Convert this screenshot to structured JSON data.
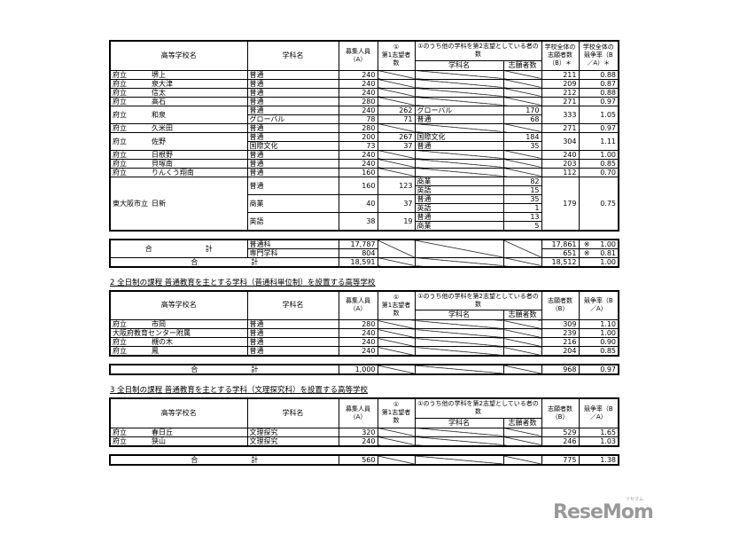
{
  "headers_full": {
    "school": "高等学校名",
    "dept": "学科名",
    "A": "募集人員（A）",
    "first_mark": "①",
    "first": "第1志望者数",
    "second": "①のうち他の学科を第2志望としている者の数",
    "sub_dept": "学科名",
    "sub_count": "志願者数",
    "B": "学校全体の志願者数（B）＊",
    "rate": "学校全体の競争率（B／A）＊"
  },
  "headers_short": {
    "school": "高等学校名",
    "dept": "学科名",
    "A": "募集人員（A）",
    "first_mark": "①",
    "first": "第1志望者数",
    "second": "①のうち他の学科を第2志望としている者の数",
    "sub_dept": "学科名",
    "sub_count": "志願者数",
    "B": "志願者数（B）",
    "rate": "競争率（B／A）"
  },
  "sections": [
    {
      "title": "",
      "rows": [
        {
          "prefix": "府立",
          "name": "堺上",
          "depts": [
            {
              "name": "普通",
              "A": "240",
              "first": null,
              "subs": []
            }
          ],
          "B": "211",
          "rate": "0.88"
        },
        {
          "prefix": "府立",
          "name": "泉大津",
          "depts": [
            {
              "name": "普通",
              "A": "240",
              "first": null,
              "subs": []
            }
          ],
          "B": "209",
          "rate": "0.87"
        },
        {
          "prefix": "府立",
          "name": "信太",
          "depts": [
            {
              "name": "普通",
              "A": "240",
              "first": null,
              "subs": []
            }
          ],
          "B": "212",
          "rate": "0.88"
        },
        {
          "prefix": "府立",
          "name": "高石",
          "depts": [
            {
              "name": "普通",
              "A": "280",
              "first": null,
              "subs": []
            }
          ],
          "B": "271",
          "rate": "0.97"
        },
        {
          "prefix": "府立",
          "name": "和泉",
          "depts": [
            {
              "name": "普通",
              "A": "240",
              "first": "262",
              "subs": [
                {
                  "name": "グローバル",
                  "count": "170"
                }
              ]
            },
            {
              "name": "グローバル",
              "A": "78",
              "first": "71",
              "subs": [
                {
                  "name": "普通",
                  "count": "68"
                }
              ]
            }
          ],
          "B": "333",
          "rate": "1.05"
        },
        {
          "prefix": "府立",
          "name": "久米田",
          "depts": [
            {
              "name": "普通",
              "A": "280",
              "first": null,
              "subs": []
            }
          ],
          "B": "271",
          "rate": "0.97"
        },
        {
          "prefix": "府立",
          "name": "佐野",
          "depts": [
            {
              "name": "普通",
              "A": "200",
              "first": "267",
              "subs": [
                {
                  "name": "国際文化",
                  "count": "184"
                }
              ]
            },
            {
              "name": "国際文化",
              "A": "73",
              "first": "37",
              "subs": [
                {
                  "name": "普通",
                  "count": "35"
                }
              ]
            }
          ],
          "B": "304",
          "rate": "1.11"
        },
        {
          "prefix": "府立",
          "name": "日根野",
          "depts": [
            {
              "name": "普通",
              "A": "240",
              "first": null,
              "subs": []
            }
          ],
          "B": "240",
          "rate": "1.00"
        },
        {
          "prefix": "府立",
          "name": "貝塚南",
          "depts": [
            {
              "name": "普通",
              "A": "240",
              "first": null,
              "subs": []
            }
          ],
          "B": "203",
          "rate": "0.85"
        },
        {
          "prefix": "府立",
          "name": "りんくう翔南",
          "depts": [
            {
              "name": "普通",
              "A": "160",
              "first": null,
              "subs": []
            }
          ],
          "B": "112",
          "rate": "0.70"
        },
        {
          "prefix": "東大阪市立",
          "name": "日新",
          "depts": [
            {
              "name": "普通",
              "A": "160",
              "first": "123",
              "subs": [
                {
                  "name": "商業",
                  "count": "82"
                },
                {
                  "name": "英語",
                  "count": "15"
                }
              ]
            },
            {
              "name": "商業",
              "A": "40",
              "first": "37",
              "subs": [
                {
                  "name": "普通",
                  "count": "35"
                },
                {
                  "name": "英語",
                  "count": "1"
                }
              ]
            },
            {
              "name": "英語",
              "A": "38",
              "first": "19",
              "subs": [
                {
                  "name": "普通",
                  "count": "13"
                },
                {
                  "name": "商業",
                  "count": "5"
                }
              ]
            }
          ],
          "B": "179",
          "rate": "0.75"
        }
      ],
      "totals": {
        "label_a": "合",
        "label_b": "計",
        "rows": [
          {
            "dept": "普通科",
            "A": "17,787",
            "B": "17,861",
            "mark": "※",
            "rate": "1.00"
          },
          {
            "dept": "専門学科",
            "A": "804",
            "B": "651",
            "mark": "※",
            "rate": "0.81"
          }
        ],
        "grand": {
          "A": "18,591",
          "B": "18,512",
          "rate": "1.00"
        }
      }
    },
    {
      "title": "2  全日制の課程  普通教育を主とする学科（普通科単位制）を設置する高等学校",
      "rows": [
        {
          "prefix": "府立",
          "name": "市岡",
          "depts": [
            {
              "name": "普通",
              "A": "280",
              "first": null,
              "subs": []
            }
          ],
          "B": "309",
          "rate": "1.10"
        },
        {
          "prefix": "",
          "name": "大阪府教育センター附属",
          "depts": [
            {
              "name": "普通",
              "A": "240",
              "first": null,
              "subs": []
            }
          ],
          "B": "239",
          "rate": "1.00"
        },
        {
          "prefix": "府立",
          "name": "槻の木",
          "depts": [
            {
              "name": "普通",
              "A": "240",
              "first": null,
              "subs": []
            }
          ],
          "B": "216",
          "rate": "0.90"
        },
        {
          "prefix": "府立",
          "name": "鳳",
          "depts": [
            {
              "name": "普通",
              "A": "240",
              "first": null,
              "subs": []
            }
          ],
          "B": "204",
          "rate": "0.85"
        }
      ],
      "totals": {
        "label_a": "合",
        "label_b": "計",
        "grand": {
          "A": "1,000",
          "B": "968",
          "rate": "0.97"
        }
      }
    },
    {
      "title": "3  全日制の課程  普通教育を主とする学科（文理探究科）を設置する高等学校",
      "rows": [
        {
          "prefix": "府立",
          "name": "春日丘",
          "depts": [
            {
              "name": "文理探究",
              "A": "320",
              "first": null,
              "subs": []
            }
          ],
          "B": "529",
          "rate": "1.65"
        },
        {
          "prefix": "府立",
          "name": "狭山",
          "depts": [
            {
              "name": "文理探究",
              "A": "240",
              "first": null,
              "subs": []
            }
          ],
          "B": "246",
          "rate": "1.03"
        }
      ],
      "totals": {
        "label_a": "合",
        "label_b": "計",
        "grand": {
          "A": "560",
          "B": "775",
          "rate": "1.38"
        }
      }
    }
  ],
  "logo": {
    "text": "ReseMom",
    "kana": "リセマム"
  }
}
